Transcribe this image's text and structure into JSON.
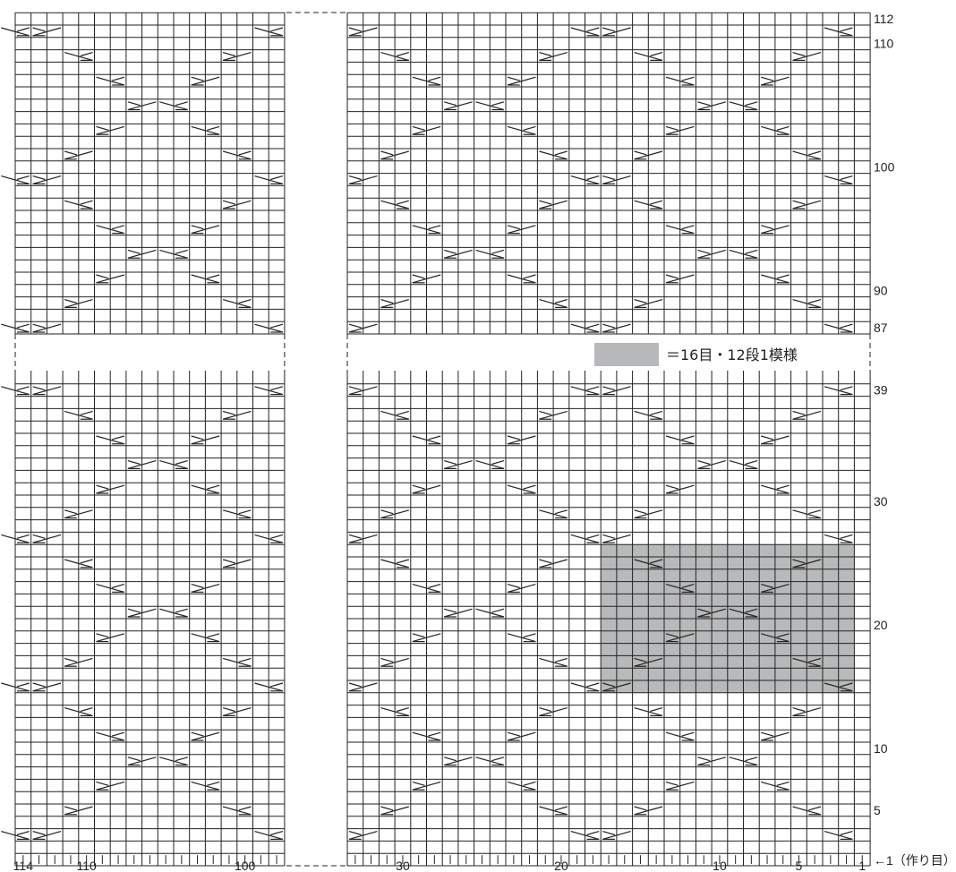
{
  "chart": {
    "title": "",
    "total_stitches": 114,
    "pattern_repeat": {
      "stitches": 16,
      "rows": 12
    },
    "top_section_rows": {
      "from": 87,
      "to": 112
    },
    "bottom_section_rows": {
      "from": 1,
      "to": 39
    },
    "omitted_columns": {
      "from": 34,
      "to": 97
    },
    "omitted_rows": {
      "from": 40,
      "to": 86
    },
    "row_labels": [
      {
        "row": 112,
        "text": "112"
      },
      {
        "row": 110,
        "text": "110"
      },
      {
        "row": 100,
        "text": "100"
      },
      {
        "row": 90,
        "text": "90"
      },
      {
        "row": 87,
        "text": "87"
      },
      {
        "row": 39,
        "text": "39"
      },
      {
        "row": 30,
        "text": "30"
      },
      {
        "row": 20,
        "text": "20"
      },
      {
        "row": 10,
        "text": "10"
      },
      {
        "row": 5,
        "text": "5"
      }
    ],
    "first_row_label": "←1（作り目）",
    "column_labels": [
      {
        "stitch": 114,
        "text": "114"
      },
      {
        "stitch": 110,
        "text": "110"
      },
      {
        "stitch": 100,
        "text": "100"
      },
      {
        "stitch": 30,
        "text": "30"
      },
      {
        "stitch": 20,
        "text": "20"
      },
      {
        "stitch": 10,
        "text": "10"
      },
      {
        "stitch": 5,
        "text": "5"
      },
      {
        "stitch": 1,
        "text": "1"
      }
    ],
    "legend": {
      "text": "＝16目・12段1模様",
      "swatch_color": "#b8b9bb"
    },
    "repeat_highlight": {
      "stitch_from": 2,
      "stitch_to": 17,
      "row_from": 15,
      "row_to": 26
    },
    "colors": {
      "line": "#222222",
      "highlight": "#b8b9bb"
    }
  }
}
